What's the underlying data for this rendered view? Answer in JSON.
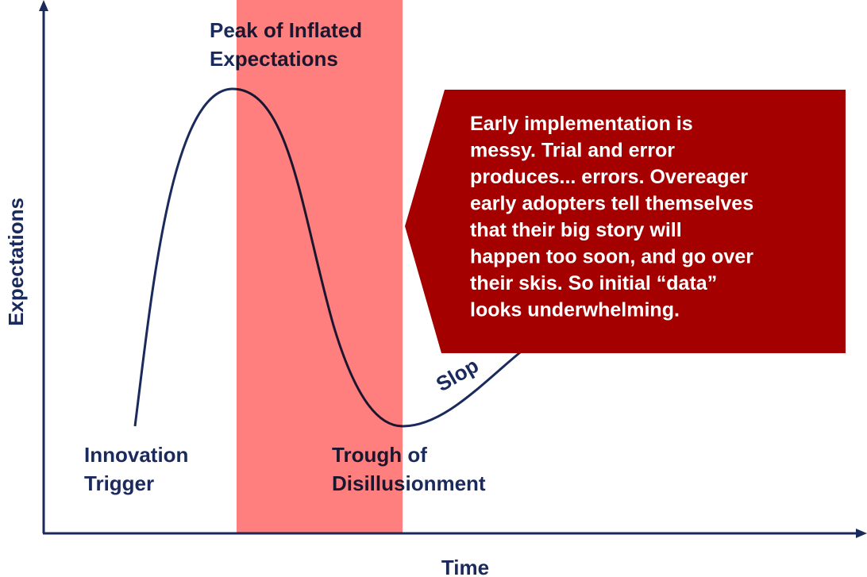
{
  "axes": {
    "y_label": "Expectations",
    "x_label": "Time"
  },
  "phases": {
    "peak": [
      "Peak of Inflated",
      "Expectations"
    ],
    "trigger": [
      "Innovation",
      "Trigger"
    ],
    "trough": [
      "Trough of",
      "Disillusionment"
    ],
    "slope": "Slop"
  },
  "callout": {
    "lines": [
      "Early implementation is",
      "messy. Trial and error",
      "produces... errors. Overeager",
      "early adopters tell themselves",
      "that their big story will",
      "happen too soon, and go over",
      "their skis. So initial “data”",
      "looks underwhelming."
    ]
  }
}
